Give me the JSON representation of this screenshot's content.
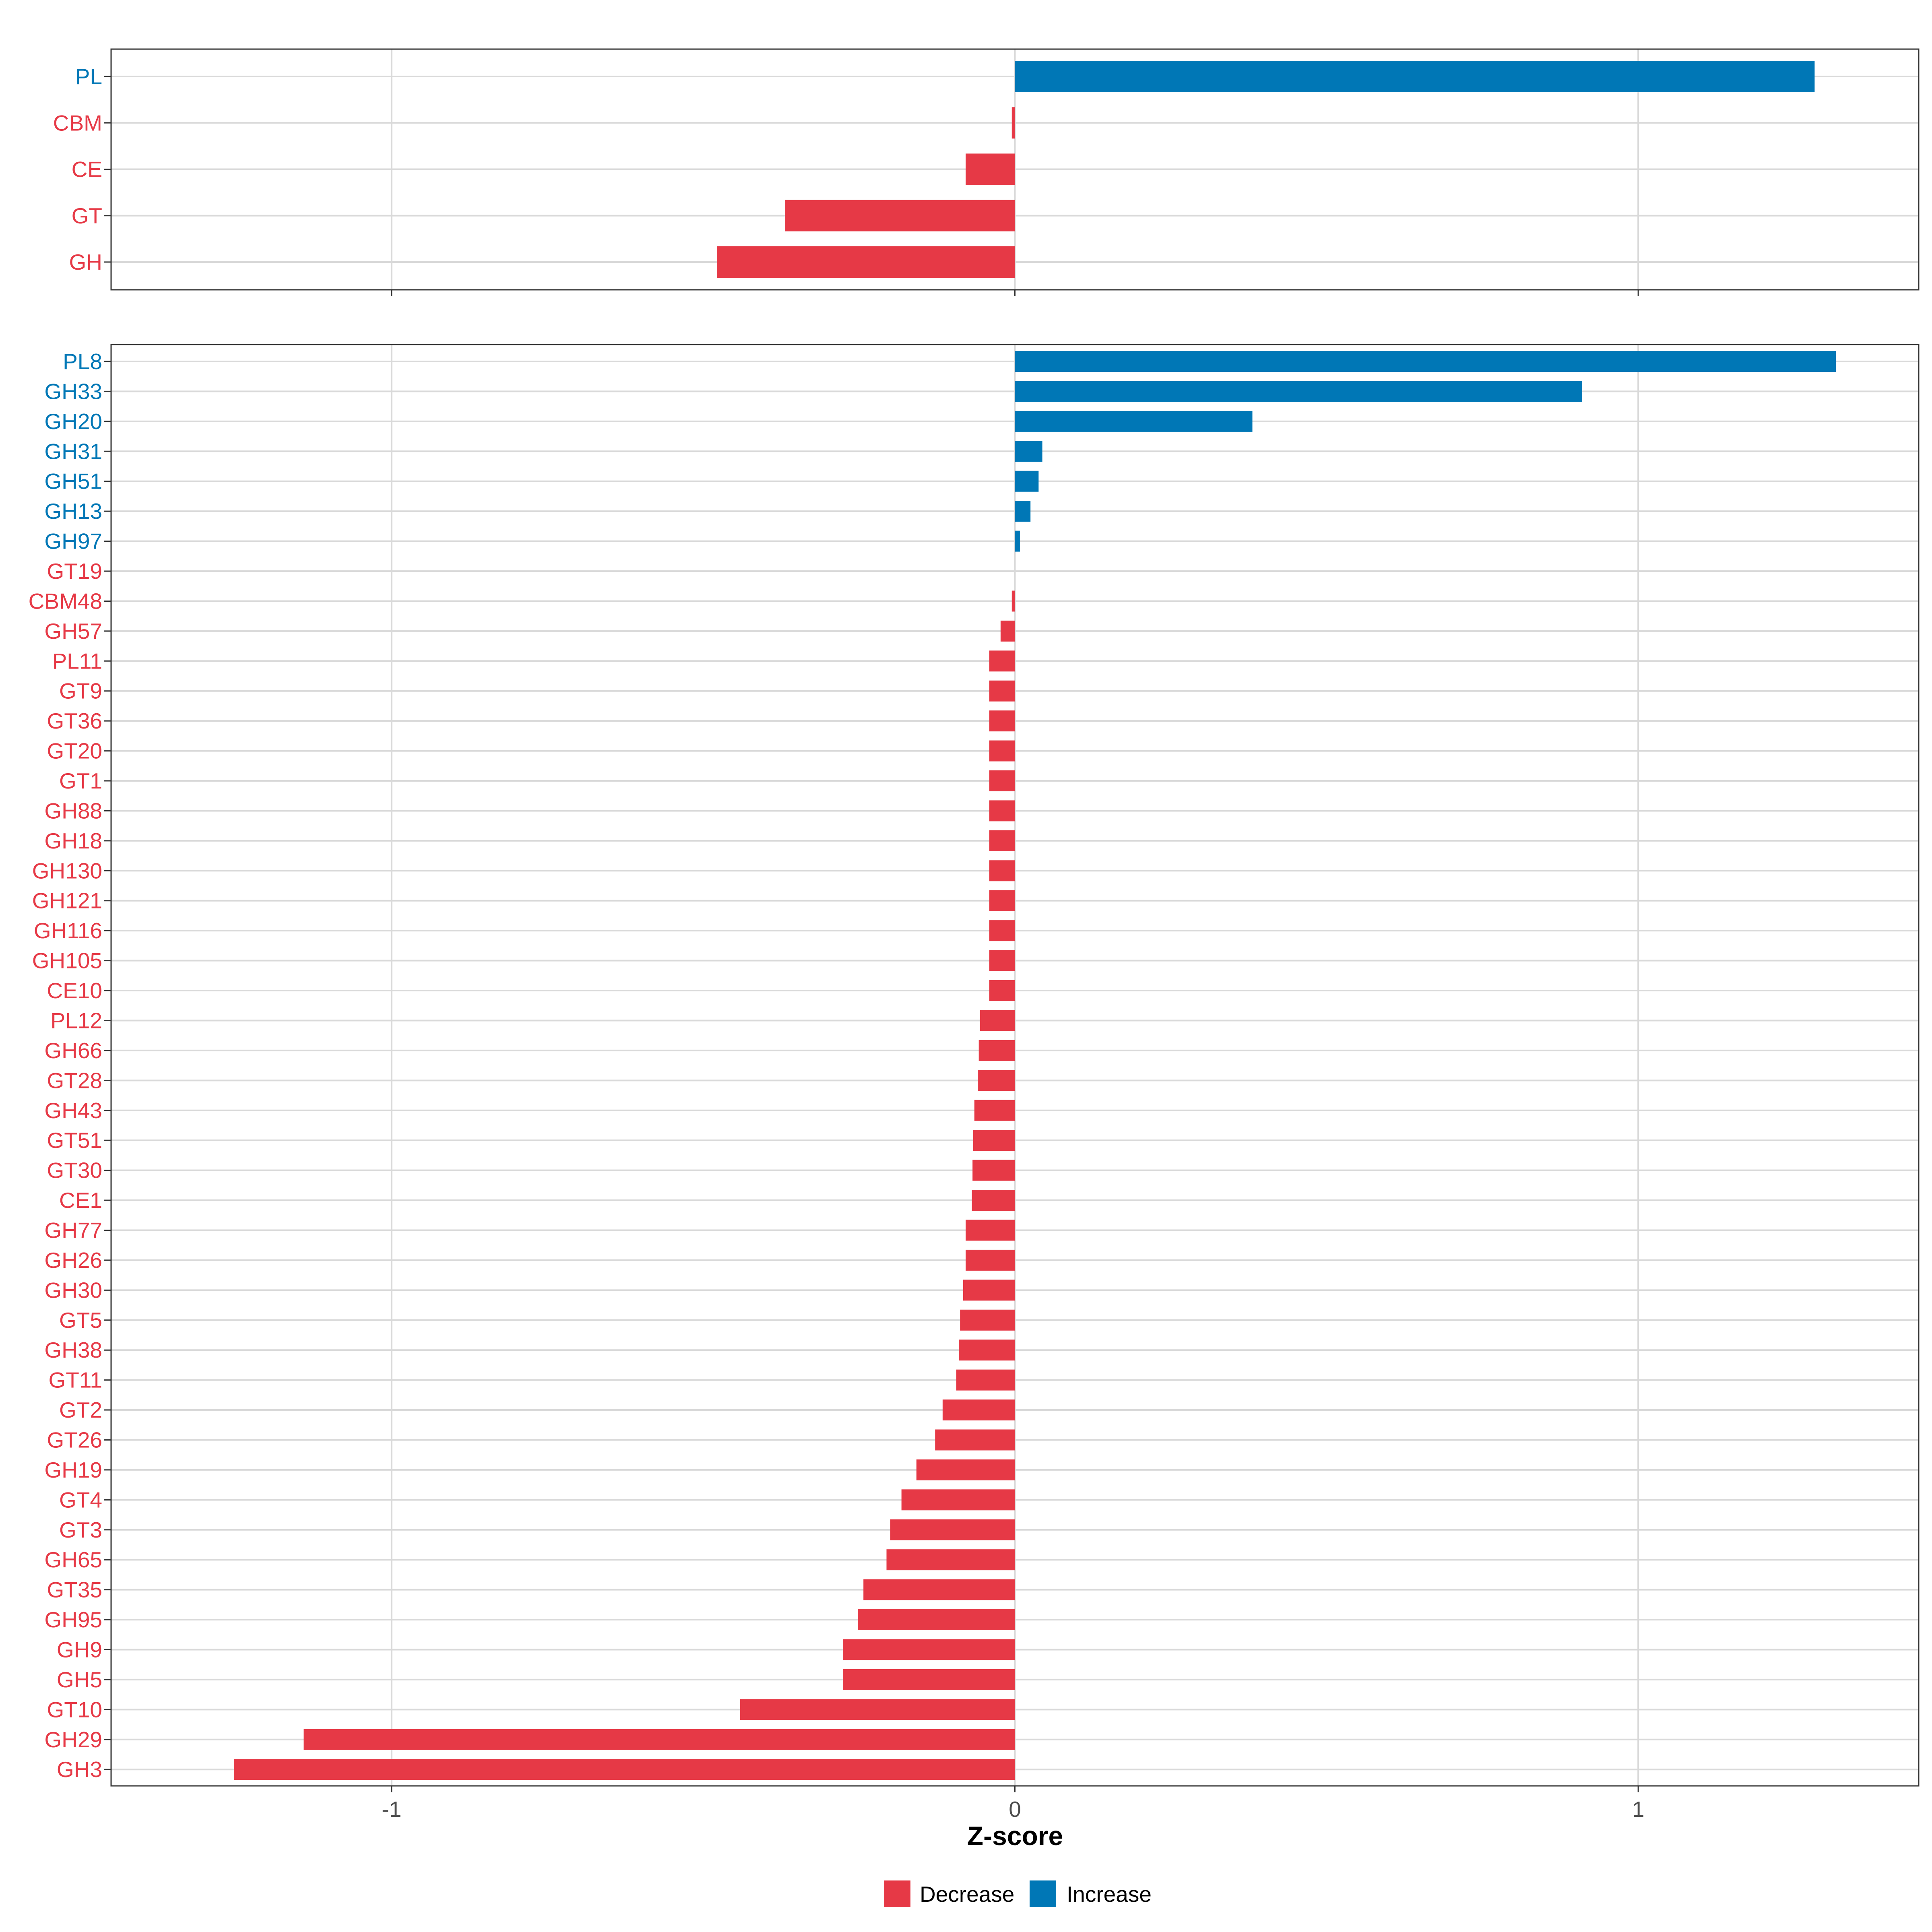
{
  "chart_data": [
    {
      "type": "bar",
      "orientation": "horizontal",
      "panel": "top",
      "categories": [
        "PL",
        "CBM",
        "CE",
        "GT",
        "GH"
      ],
      "values": [
        1.283,
        -0.005,
        -0.079,
        -0.369,
        -0.478
      ],
      "direction": [
        "Increase",
        "Decrease",
        "Decrease",
        "Decrease",
        "Decrease"
      ],
      "xlim": [
        -1.45,
        1.45
      ],
      "xticks": [
        -1,
        0,
        1
      ],
      "grid": true
    },
    {
      "type": "bar",
      "orientation": "horizontal",
      "panel": "bottom",
      "categories": [
        "PL8",
        "GH33",
        "GH20",
        "GH31",
        "GH51",
        "GH13",
        "GH97",
        "GT19",
        "CBM48",
        "GH57",
        "PL11",
        "GT9",
        "GT36",
        "GT20",
        "GT1",
        "GH88",
        "GH18",
        "GH130",
        "GH121",
        "GH116",
        "GH105",
        "CE10",
        "PL12",
        "GH66",
        "GT28",
        "GH43",
        "GT51",
        "GT30",
        "CE1",
        "GH77",
        "GH26",
        "GH30",
        "GT5",
        "GH38",
        "GT11",
        "GT2",
        "GT26",
        "GH19",
        "GT4",
        "GT3",
        "GH65",
        "GT35",
        "GH95",
        "GH9",
        "GH5",
        "GT10",
        "GH29",
        "GH3"
      ],
      "values": [
        1.317,
        0.91,
        0.381,
        0.044,
        0.038,
        0.025,
        0.008,
        0.0,
        -0.005,
        -0.023,
        -0.041,
        -0.041,
        -0.041,
        -0.041,
        -0.041,
        -0.041,
        -0.041,
        -0.041,
        -0.041,
        -0.041,
        -0.041,
        -0.041,
        -0.056,
        -0.058,
        -0.059,
        -0.065,
        -0.067,
        -0.068,
        -0.069,
        -0.079,
        -0.079,
        -0.083,
        -0.088,
        -0.09,
        -0.094,
        -0.116,
        -0.128,
        -0.158,
        -0.182,
        -0.2,
        -0.206,
        -0.243,
        -0.252,
        -0.276,
        -0.276,
        -0.441,
        -1.141,
        -1.253
      ],
      "direction": [
        "Increase",
        "Increase",
        "Increase",
        "Increase",
        "Increase",
        "Increase",
        "Increase",
        "Decrease",
        "Decrease",
        "Decrease",
        "Decrease",
        "Decrease",
        "Decrease",
        "Decrease",
        "Decrease",
        "Decrease",
        "Decrease",
        "Decrease",
        "Decrease",
        "Decrease",
        "Decrease",
        "Decrease",
        "Decrease",
        "Decrease",
        "Decrease",
        "Decrease",
        "Decrease",
        "Decrease",
        "Decrease",
        "Decrease",
        "Decrease",
        "Decrease",
        "Decrease",
        "Decrease",
        "Decrease",
        "Decrease",
        "Decrease",
        "Decrease",
        "Decrease",
        "Decrease",
        "Decrease",
        "Decrease",
        "Decrease",
        "Decrease",
        "Decrease",
        "Decrease",
        "Decrease",
        "Decrease"
      ],
      "xlim": [
        -1.45,
        1.45
      ],
      "xticks": [
        -1,
        0,
        1
      ],
      "xtick_labels": [
        "-1",
        "0",
        "1"
      ],
      "xlabel": "Z-score",
      "grid": true
    }
  ],
  "legend": {
    "placement": "bottom-center",
    "items": [
      {
        "label": "Decrease",
        "color": "#E63946"
      },
      {
        "label": "Increase",
        "color": "#0077B6"
      }
    ]
  },
  "colors": {
    "decrease": "#E63946",
    "increase": "#0077B6",
    "grid": "#D9D9D9",
    "panel_border": "#333333",
    "tick_text": "#4d4d4d"
  }
}
